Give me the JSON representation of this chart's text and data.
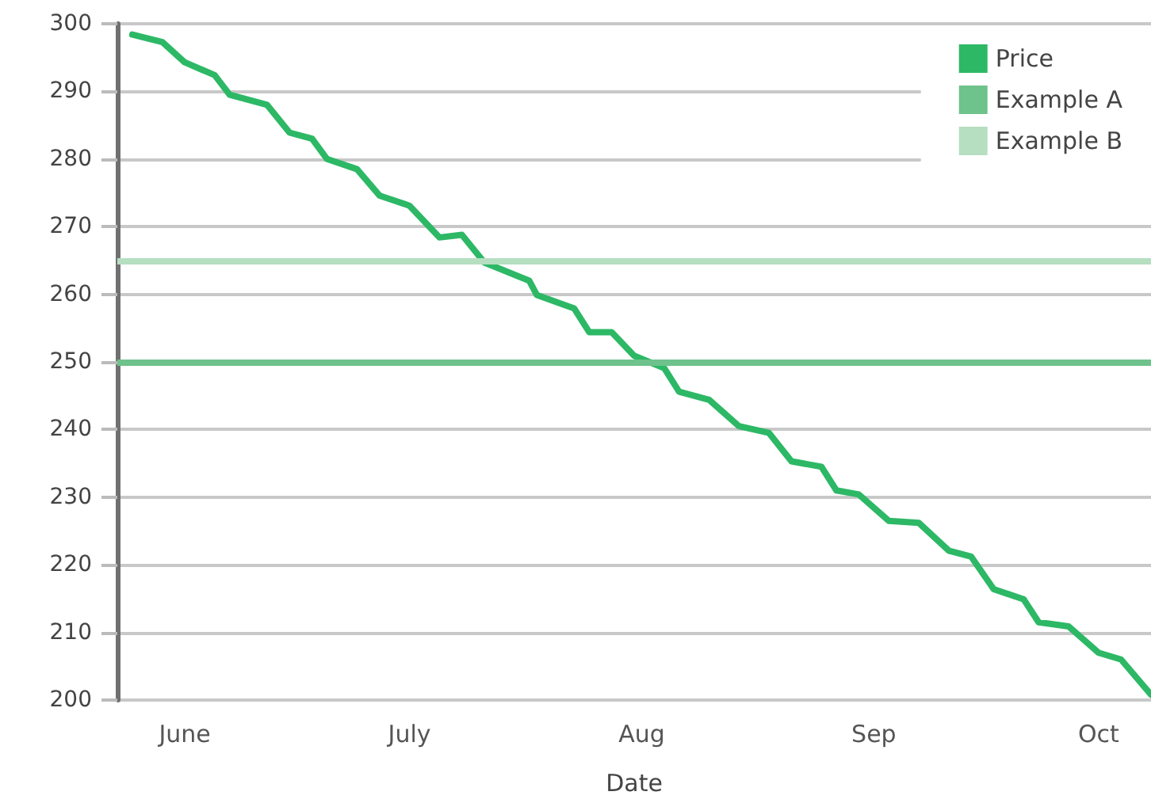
{
  "chart_data": {
    "type": "line",
    "xlabel": "Date",
    "x": [
      "--05-25",
      "--05-29",
      "--06-01",
      "--06-05",
      "--06-07",
      "--06-12",
      "--06-15",
      "--06-18",
      "--06-20",
      "--06-24",
      "--06-27",
      "--07-01",
      "--07-05",
      "--07-08",
      "--07-11",
      "--07-17",
      "--07-18",
      "--07-23",
      "--07-25",
      "--07-28",
      "--07-31",
      "--08-04",
      "--08-06",
      "--08-10",
      "--08-14",
      "--08-18",
      "--08-21",
      "--08-25",
      "--08-27",
      "--08-30",
      "--09-03",
      "--09-07",
      "--09-11",
      "--09-14",
      "--09-17",
      "--09-21",
      "--09-23",
      "--09-27",
      "--10-01",
      "--10-04",
      "--10-08"
    ],
    "series": [
      {
        "name": "Price",
        "color": "#2db866",
        "values": [
          298.4,
          297.3,
          294.3,
          292.4,
          289.5,
          288.0,
          283.9,
          283.0,
          280.0,
          278.5,
          274.6,
          273.1,
          268.4,
          268.8,
          264.7,
          262.0,
          259.9,
          257.9,
          254.4,
          254.4,
          250.9,
          249.1,
          245.6,
          244.4,
          240.5,
          239.5,
          235.3,
          234.5,
          231.0,
          230.4,
          226.5,
          226.2,
          222.1,
          221.2,
          216.4,
          214.9,
          211.5,
          210.9,
          207.0,
          206.0,
          200.8
        ]
      }
    ],
    "ref_lines": [
      {
        "axis": "y",
        "value": 250,
        "label": "Example A",
        "color": "#6ec28b"
      },
      {
        "axis": "y",
        "value": 265,
        "label": "Example B",
        "color": "#b5dfc0"
      }
    ],
    "xlim": [
      "--05-23",
      "--10-08"
    ],
    "xticks": [
      {
        "value": "--06-01",
        "label": "June"
      },
      {
        "value": "--07-01",
        "label": "July"
      },
      {
        "value": "--08-01",
        "label": "Aug"
      },
      {
        "value": "--09-01",
        "label": "Sep"
      },
      {
        "value": "--10-01",
        "label": "Oct"
      }
    ],
    "ylim": [
      200,
      300
    ],
    "yticks": [
      200,
      210,
      220,
      230,
      240,
      250,
      260,
      270,
      280,
      290,
      300
    ],
    "grid": "y",
    "legend": "top right",
    "marker": "none",
    "line_style": "solid"
  }
}
